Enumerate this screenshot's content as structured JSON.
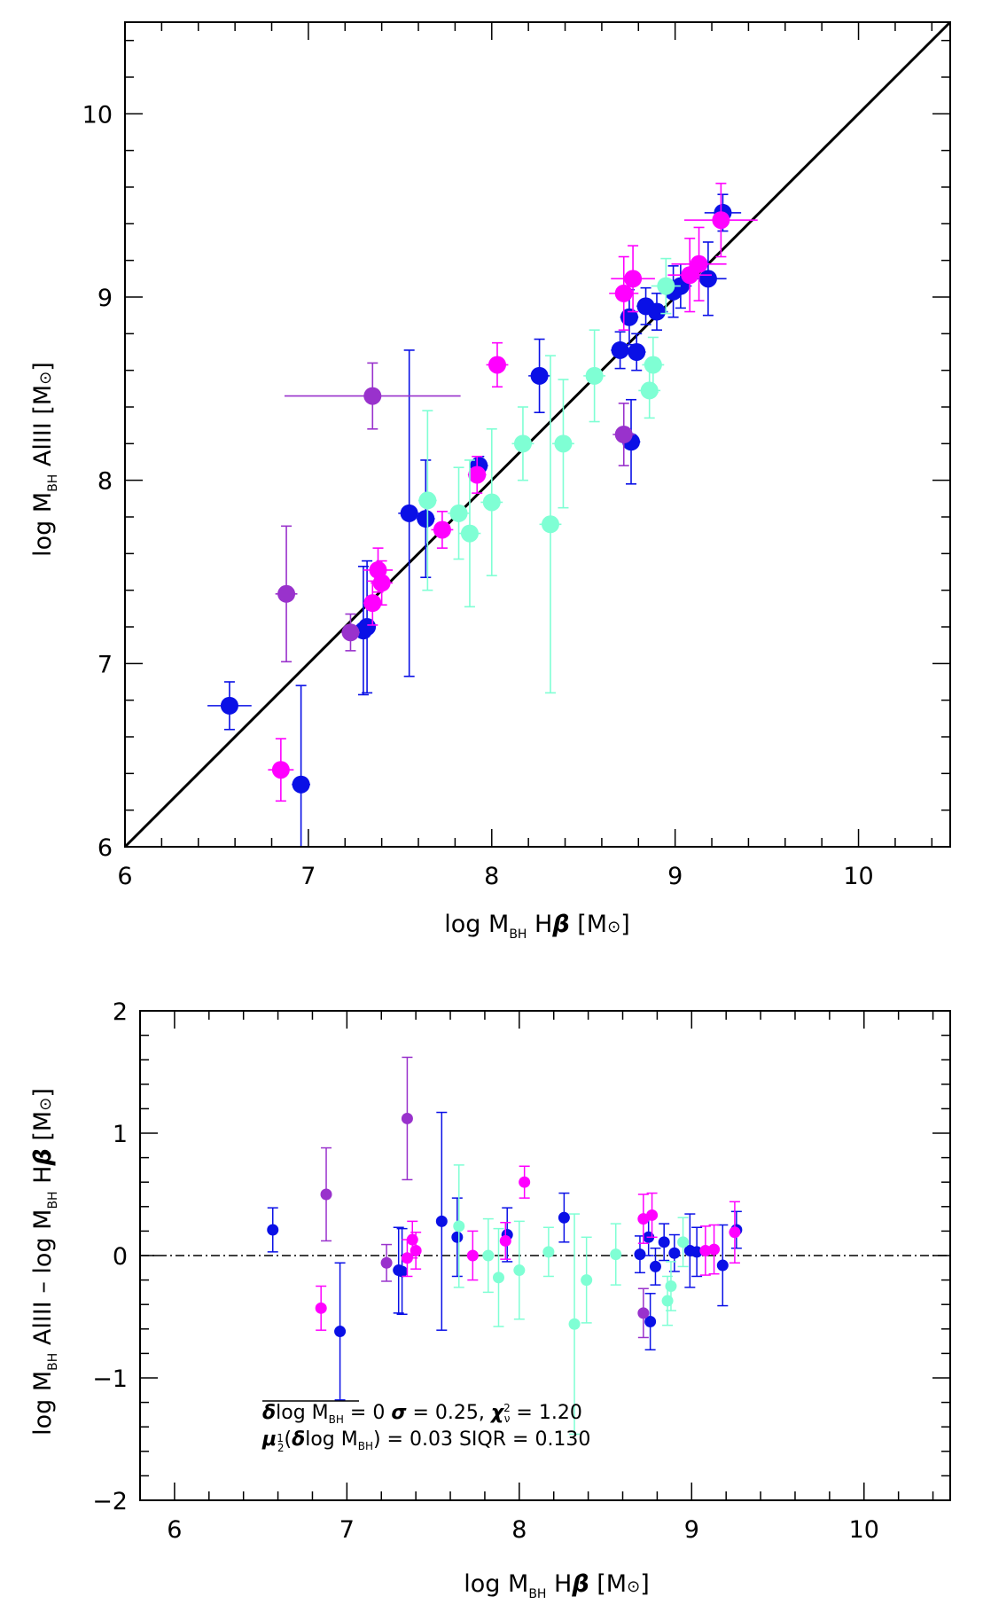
{
  "chart_data": [
    {
      "type": "scatter",
      "title": "",
      "xlabel": {
        "prefix": "log M",
        "sub": "BH",
        "mid": " H",
        "greek": "β",
        "unit": " [M",
        "sun": "⊙",
        "close": "]"
      },
      "ylabel": {
        "prefix": "log M",
        "sub": "BH",
        "mid": " AlIII [M",
        "sun": "⊙",
        "close": "]"
      },
      "xlim": [
        6,
        10.5
      ],
      "ylim": [
        6,
        10.5
      ],
      "xticks": [
        6,
        7,
        8,
        9,
        10
      ],
      "yticks": [
        6,
        7,
        8,
        9,
        10
      ],
      "xtick_labels": [
        "6",
        "7",
        "8",
        "9",
        "10"
      ],
      "ytick_labels": [
        "6",
        "7",
        "8",
        "9",
        "10"
      ],
      "reference_line": {
        "style": "solid",
        "slope": 1,
        "intercept": 0
      },
      "series": [
        {
          "name": "blue",
          "color": "#0a10e6",
          "points": [
            {
              "x": 6.57,
              "y": 6.77,
              "xe": 0.12,
              "ye": 0.13
            },
            {
              "x": 6.96,
              "y": 6.34,
              "xe": 0.05,
              "ye": 0.54
            },
            {
              "x": 7.32,
              "y": 7.2,
              "xe": 0.04,
              "ye": 0.36
            },
            {
              "x": 7.3,
              "y": 7.18,
              "xe": 0.03,
              "ye": 0.35
            },
            {
              "x": 7.55,
              "y": 7.82,
              "xe": 0.06,
              "ye": 0.89
            },
            {
              "x": 7.64,
              "y": 7.79,
              "xe": 0.05,
              "ye": 0.32
            },
            {
              "x": 7.93,
              "y": 8.08,
              "xe": 0.05,
              "ye": 0.05
            },
            {
              "x": 8.26,
              "y": 8.57,
              "xe": 0.06,
              "ye": 0.2
            },
            {
              "x": 8.7,
              "y": 8.71,
              "xe": 0.05,
              "ye": 0.1
            },
            {
              "x": 8.75,
              "y": 8.89,
              "xe": 0.05,
              "ye": 0.15
            },
            {
              "x": 8.79,
              "y": 8.7,
              "xe": 0.05,
              "ye": 0.1
            },
            {
              "x": 8.84,
              "y": 8.95,
              "xe": 0.05,
              "ye": 0.1
            },
            {
              "x": 8.9,
              "y": 8.92,
              "xe": 0.06,
              "ye": 0.1
            },
            {
              "x": 8.76,
              "y": 8.21,
              "xe": 0.05,
              "ye": 0.23
            },
            {
              "x": 8.99,
              "y": 9.03,
              "xe": 0.06,
              "ye": 0.14
            },
            {
              "x": 9.03,
              "y": 9.06,
              "xe": 0.06,
              "ye": 0.12
            },
            {
              "x": 9.18,
              "y": 9.1,
              "xe": 0.1,
              "ye": 0.2
            },
            {
              "x": 9.26,
              "y": 9.46,
              "xe": 0.1,
              "ye": 0.1
            }
          ]
        },
        {
          "name": "magenta",
          "color": "#ff00ff",
          "points": [
            {
              "x": 6.85,
              "y": 6.42,
              "xe": 0.07,
              "ye": 0.17
            },
            {
              "x": 7.35,
              "y": 7.33,
              "xe": 0.05,
              "ye": 0.12
            },
            {
              "x": 7.38,
              "y": 7.51,
              "xe": 0.08,
              "ye": 0.12
            },
            {
              "x": 7.4,
              "y": 7.44,
              "xe": 0.06,
              "ye": 0.12
            },
            {
              "x": 7.73,
              "y": 7.73,
              "xe": 0.06,
              "ye": 0.1
            },
            {
              "x": 7.92,
              "y": 8.03,
              "xe": 0.05,
              "ye": 0.1
            },
            {
              "x": 8.03,
              "y": 8.63,
              "xe": 0.06,
              "ye": 0.12
            },
            {
              "x": 8.72,
              "y": 9.02,
              "xe": 0.08,
              "ye": 0.2
            },
            {
              "x": 8.77,
              "y": 9.1,
              "xe": 0.12,
              "ye": 0.18
            },
            {
              "x": 9.08,
              "y": 9.12,
              "xe": 0.12,
              "ye": 0.2
            },
            {
              "x": 9.13,
              "y": 9.18,
              "xe": 0.15,
              "ye": 0.2
            },
            {
              "x": 9.25,
              "y": 9.42,
              "xe": 0.2,
              "ye": 0.2
            }
          ]
        },
        {
          "name": "purple",
          "color": "#9932cc",
          "points": [
            {
              "x": 6.88,
              "y": 7.38,
              "xe": 0.06,
              "ye": 0.37
            },
            {
              "x": 7.23,
              "y": 7.17,
              "xe": 0.05,
              "ye": 0.1
            },
            {
              "x": 7.35,
              "y": 8.46,
              "xe": 0.48,
              "ye": 0.18
            },
            {
              "x": 8.72,
              "y": 8.25,
              "xe": 0.06,
              "ye": 0.17
            }
          ]
        },
        {
          "name": "aquamarine",
          "color": "#7fffd4",
          "points": [
            {
              "x": 7.65,
              "y": 7.89,
              "xe": 0.05,
              "ye": 0.49
            },
            {
              "x": 7.82,
              "y": 7.82,
              "xe": 0.06,
              "ye": 0.25
            },
            {
              "x": 7.88,
              "y": 7.71,
              "xe": 0.06,
              "ye": 0.4
            },
            {
              "x": 8.0,
              "y": 7.88,
              "xe": 0.06,
              "ye": 0.4
            },
            {
              "x": 8.17,
              "y": 8.2,
              "xe": 0.06,
              "ye": 0.2
            },
            {
              "x": 8.32,
              "y": 7.76,
              "xe": 0.06,
              "ye": 0.92
            },
            {
              "x": 8.39,
              "y": 8.2,
              "xe": 0.06,
              "ye": 0.35
            },
            {
              "x": 8.56,
              "y": 8.57,
              "xe": 0.06,
              "ye": 0.25
            },
            {
              "x": 8.86,
              "y": 8.49,
              "xe": 0.06,
              "ye": 0.15
            },
            {
              "x": 8.88,
              "y": 8.63,
              "xe": 0.06,
              "ye": 0.15
            },
            {
              "x": 8.95,
              "y": 9.06,
              "xe": 0.08,
              "ye": 0.15
            }
          ]
        }
      ]
    },
    {
      "type": "scatter",
      "title": "",
      "xlabel": {
        "prefix": "log M",
        "sub": "BH",
        "mid": " H",
        "greek": "β",
        "unit": " [M",
        "sun": "⊙",
        "close": "]"
      },
      "ylabel": {
        "prefix": "log M",
        "sub": "BH",
        "mid1": " AlIII – log M",
        "sub2": "BH",
        "mid2": " H",
        "greek": "β",
        "unit": " [M",
        "sun": "⊙",
        "close": "]"
      },
      "xlim": [
        5.8,
        10.5
      ],
      "ylim": [
        -2,
        2
      ],
      "xticks": [
        6,
        7,
        8,
        9,
        10
      ],
      "yticks": [
        -2,
        -1,
        0,
        1,
        2
      ],
      "xtick_labels": [
        "6",
        "7",
        "8",
        "9",
        "10"
      ],
      "ytick_labels": [
        "−2",
        "−1",
        "0",
        "1",
        "2"
      ],
      "reference_line": {
        "style": "dash-dot",
        "y": 0
      },
      "annotations": {
        "line1": {
          "a": "δ",
          "b": "log M",
          "c": "BH",
          "d": " = 0   ",
          "e": "σ",
          "f": " = 0.25, ",
          "g": "χ",
          "h": "2",
          "i": "ν",
          "j": " = 1.20"
        },
        "line2": {
          "a": "μ",
          "b": "1",
          "c": "2",
          "d": "(",
          "e": "δ",
          "f": "log M",
          "g": "BH",
          "h": ") = 0.03   SIQR   = 0.130"
        }
      },
      "series": [
        {
          "name": "blue",
          "color": "#0a10e6",
          "points": [
            {
              "x": 6.57,
              "y": 0.21,
              "ye": 0.18
            },
            {
              "x": 6.96,
              "y": -0.62,
              "ye": 0.56
            },
            {
              "x": 7.3,
              "y": -0.12,
              "ye": 0.35
            },
            {
              "x": 7.32,
              "y": -0.13,
              "ye": 0.35
            },
            {
              "x": 7.55,
              "y": 0.28,
              "ye": 0.89
            },
            {
              "x": 7.64,
              "y": 0.15,
              "ye": 0.32
            },
            {
              "x": 7.93,
              "y": 0.17,
              "ye": 0.22
            },
            {
              "x": 8.26,
              "y": 0.31,
              "ye": 0.2
            },
            {
              "x": 8.7,
              "y": 0.01,
              "ye": 0.15
            },
            {
              "x": 8.75,
              "y": 0.15,
              "ye": 0.15
            },
            {
              "x": 8.76,
              "y": -0.54,
              "ye": 0.23
            },
            {
              "x": 8.79,
              "y": -0.09,
              "ye": 0.15
            },
            {
              "x": 8.84,
              "y": 0.11,
              "ye": 0.15
            },
            {
              "x": 8.9,
              "y": 0.02,
              "ye": 0.15
            },
            {
              "x": 8.99,
              "y": 0.04,
              "ye": 0.3
            },
            {
              "x": 9.03,
              "y": 0.03,
              "ye": 0.2
            },
            {
              "x": 9.18,
              "y": -0.08,
              "ye": 0.33
            },
            {
              "x": 9.26,
              "y": 0.21,
              "ye": 0.15
            }
          ]
        },
        {
          "name": "magenta",
          "color": "#ff00ff",
          "points": [
            {
              "x": 6.85,
              "y": -0.43,
              "ye": 0.18
            },
            {
              "x": 7.35,
              "y": -0.02,
              "ye": 0.15
            },
            {
              "x": 7.38,
              "y": 0.13,
              "ye": 0.15
            },
            {
              "x": 7.4,
              "y": 0.04,
              "ye": 0.15
            },
            {
              "x": 7.73,
              "y": 0.0,
              "ye": 0.2
            },
            {
              "x": 7.92,
              "y": 0.12,
              "ye": 0.15
            },
            {
              "x": 8.03,
              "y": 0.6,
              "ye": 0.13
            },
            {
              "x": 8.72,
              "y": 0.3,
              "ye": 0.2
            },
            {
              "x": 8.77,
              "y": 0.33,
              "ye": 0.18
            },
            {
              "x": 9.08,
              "y": 0.04,
              "ye": 0.2
            },
            {
              "x": 9.13,
              "y": 0.05,
              "ye": 0.2
            },
            {
              "x": 9.25,
              "y": 0.19,
              "ye": 0.25
            }
          ]
        },
        {
          "name": "purple",
          "color": "#9932cc",
          "points": [
            {
              "x": 6.88,
              "y": 0.5,
              "ye": 0.38
            },
            {
              "x": 7.23,
              "y": -0.06,
              "ye": 0.15
            },
            {
              "x": 7.35,
              "y": 1.12,
              "ye": 0.5
            },
            {
              "x": 8.72,
              "y": -0.47,
              "ye": 0.2
            }
          ]
        },
        {
          "name": "aquamarine",
          "color": "#7fffd4",
          "points": [
            {
              "x": 7.65,
              "y": 0.24,
              "ye": 0.5
            },
            {
              "x": 7.82,
              "y": 0.0,
              "ye": 0.3
            },
            {
              "x": 7.88,
              "y": -0.18,
              "ye": 0.4
            },
            {
              "x": 8.0,
              "y": -0.12,
              "ye": 0.4
            },
            {
              "x": 8.17,
              "y": 0.03,
              "ye": 0.2
            },
            {
              "x": 8.32,
              "y": -0.56,
              "ye": 0.9
            },
            {
              "x": 8.39,
              "y": -0.2,
              "ye": 0.35
            },
            {
              "x": 8.56,
              "y": 0.01,
              "ye": 0.25
            },
            {
              "x": 8.86,
              "y": -0.37,
              "ye": 0.2
            },
            {
              "x": 8.88,
              "y": -0.25,
              "ye": 0.2
            },
            {
              "x": 8.95,
              "y": 0.11,
              "ye": 0.2
            }
          ]
        }
      ]
    }
  ]
}
